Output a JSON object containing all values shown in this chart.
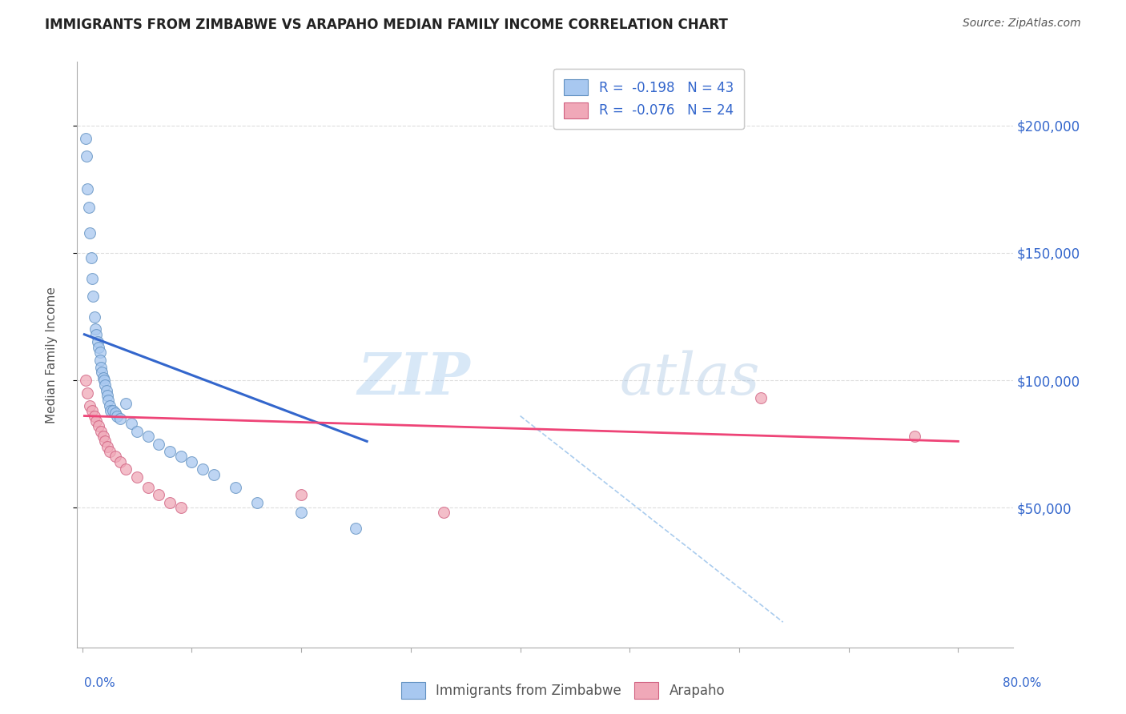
{
  "title": "IMMIGRANTS FROM ZIMBABWE VS ARAPAHO MEDIAN FAMILY INCOME CORRELATION CHART",
  "source": "Source: ZipAtlas.com",
  "ylabel": "Median Family Income",
  "ytick_labels": [
    "$50,000",
    "$100,000",
    "$150,000",
    "$200,000"
  ],
  "ytick_values": [
    50000,
    100000,
    150000,
    200000
  ],
  "ylim": [
    -5000,
    225000
  ],
  "xlim": [
    -0.005,
    0.85
  ],
  "legend_entries": [
    {
      "label": "R =  -0.198   N = 43",
      "color": "#a8c8f0"
    },
    {
      "label": "R =  -0.076   N = 24",
      "color": "#f0a8b8"
    }
  ],
  "legend_bottom": [
    "Immigrants from Zimbabwe",
    "Arapaho"
  ],
  "watermark_zip": "ZIP",
  "watermark_atlas": "atlas",
  "blue_scatter_x": [
    0.003,
    0.004,
    0.005,
    0.006,
    0.007,
    0.008,
    0.009,
    0.01,
    0.011,
    0.012,
    0.013,
    0.014,
    0.015,
    0.016,
    0.016,
    0.017,
    0.018,
    0.019,
    0.02,
    0.021,
    0.022,
    0.023,
    0.024,
    0.025,
    0.026,
    0.028,
    0.03,
    0.032,
    0.035,
    0.04,
    0.045,
    0.05,
    0.06,
    0.07,
    0.08,
    0.09,
    0.1,
    0.11,
    0.12,
    0.14,
    0.16,
    0.2,
    0.25
  ],
  "blue_scatter_y": [
    195000,
    188000,
    175000,
    168000,
    158000,
    148000,
    140000,
    133000,
    125000,
    120000,
    118000,
    115000,
    113000,
    111000,
    108000,
    105000,
    103000,
    101000,
    100000,
    98000,
    96000,
    94000,
    92000,
    90000,
    88000,
    88000,
    87000,
    86000,
    85000,
    91000,
    83000,
    80000,
    78000,
    75000,
    72000,
    70000,
    68000,
    65000,
    63000,
    58000,
    52000,
    48000,
    42000
  ],
  "pink_scatter_x": [
    0.003,
    0.005,
    0.007,
    0.009,
    0.011,
    0.013,
    0.015,
    0.017,
    0.019,
    0.021,
    0.023,
    0.025,
    0.03,
    0.035,
    0.04,
    0.05,
    0.06,
    0.07,
    0.08,
    0.09,
    0.2,
    0.33,
    0.62,
    0.76
  ],
  "pink_scatter_y": [
    100000,
    95000,
    90000,
    88000,
    86000,
    84000,
    82000,
    80000,
    78000,
    76000,
    74000,
    72000,
    70000,
    68000,
    65000,
    62000,
    58000,
    55000,
    52000,
    50000,
    55000,
    48000,
    93000,
    78000
  ],
  "blue_line_x": [
    0.002,
    0.26
  ],
  "blue_line_y": [
    118000,
    76000
  ],
  "pink_line_x": [
    0.002,
    0.8
  ],
  "pink_line_y": [
    86000,
    76000
  ],
  "dashed_line_x": [
    0.4,
    0.64
  ],
  "dashed_line_y": [
    86000,
    5000
  ],
  "grid_color": "#dddddd",
  "background_color": "#ffffff",
  "title_color": "#222222",
  "source_color": "#555555",
  "blue_color": "#a8c8f0",
  "blue_edge": "#6090c0",
  "pink_color": "#f0a8b8",
  "pink_edge": "#d06080",
  "blue_line_color": "#3366cc",
  "pink_line_color": "#ee4477",
  "dashed_color": "#aaccee",
  "right_tick_color": "#3366cc",
  "xtick_minor": [
    0.1,
    0.2,
    0.3,
    0.4,
    0.5,
    0.6,
    0.7
  ],
  "marker_size": 100,
  "marker_alpha": 0.75,
  "marker_lw": 0.8
}
